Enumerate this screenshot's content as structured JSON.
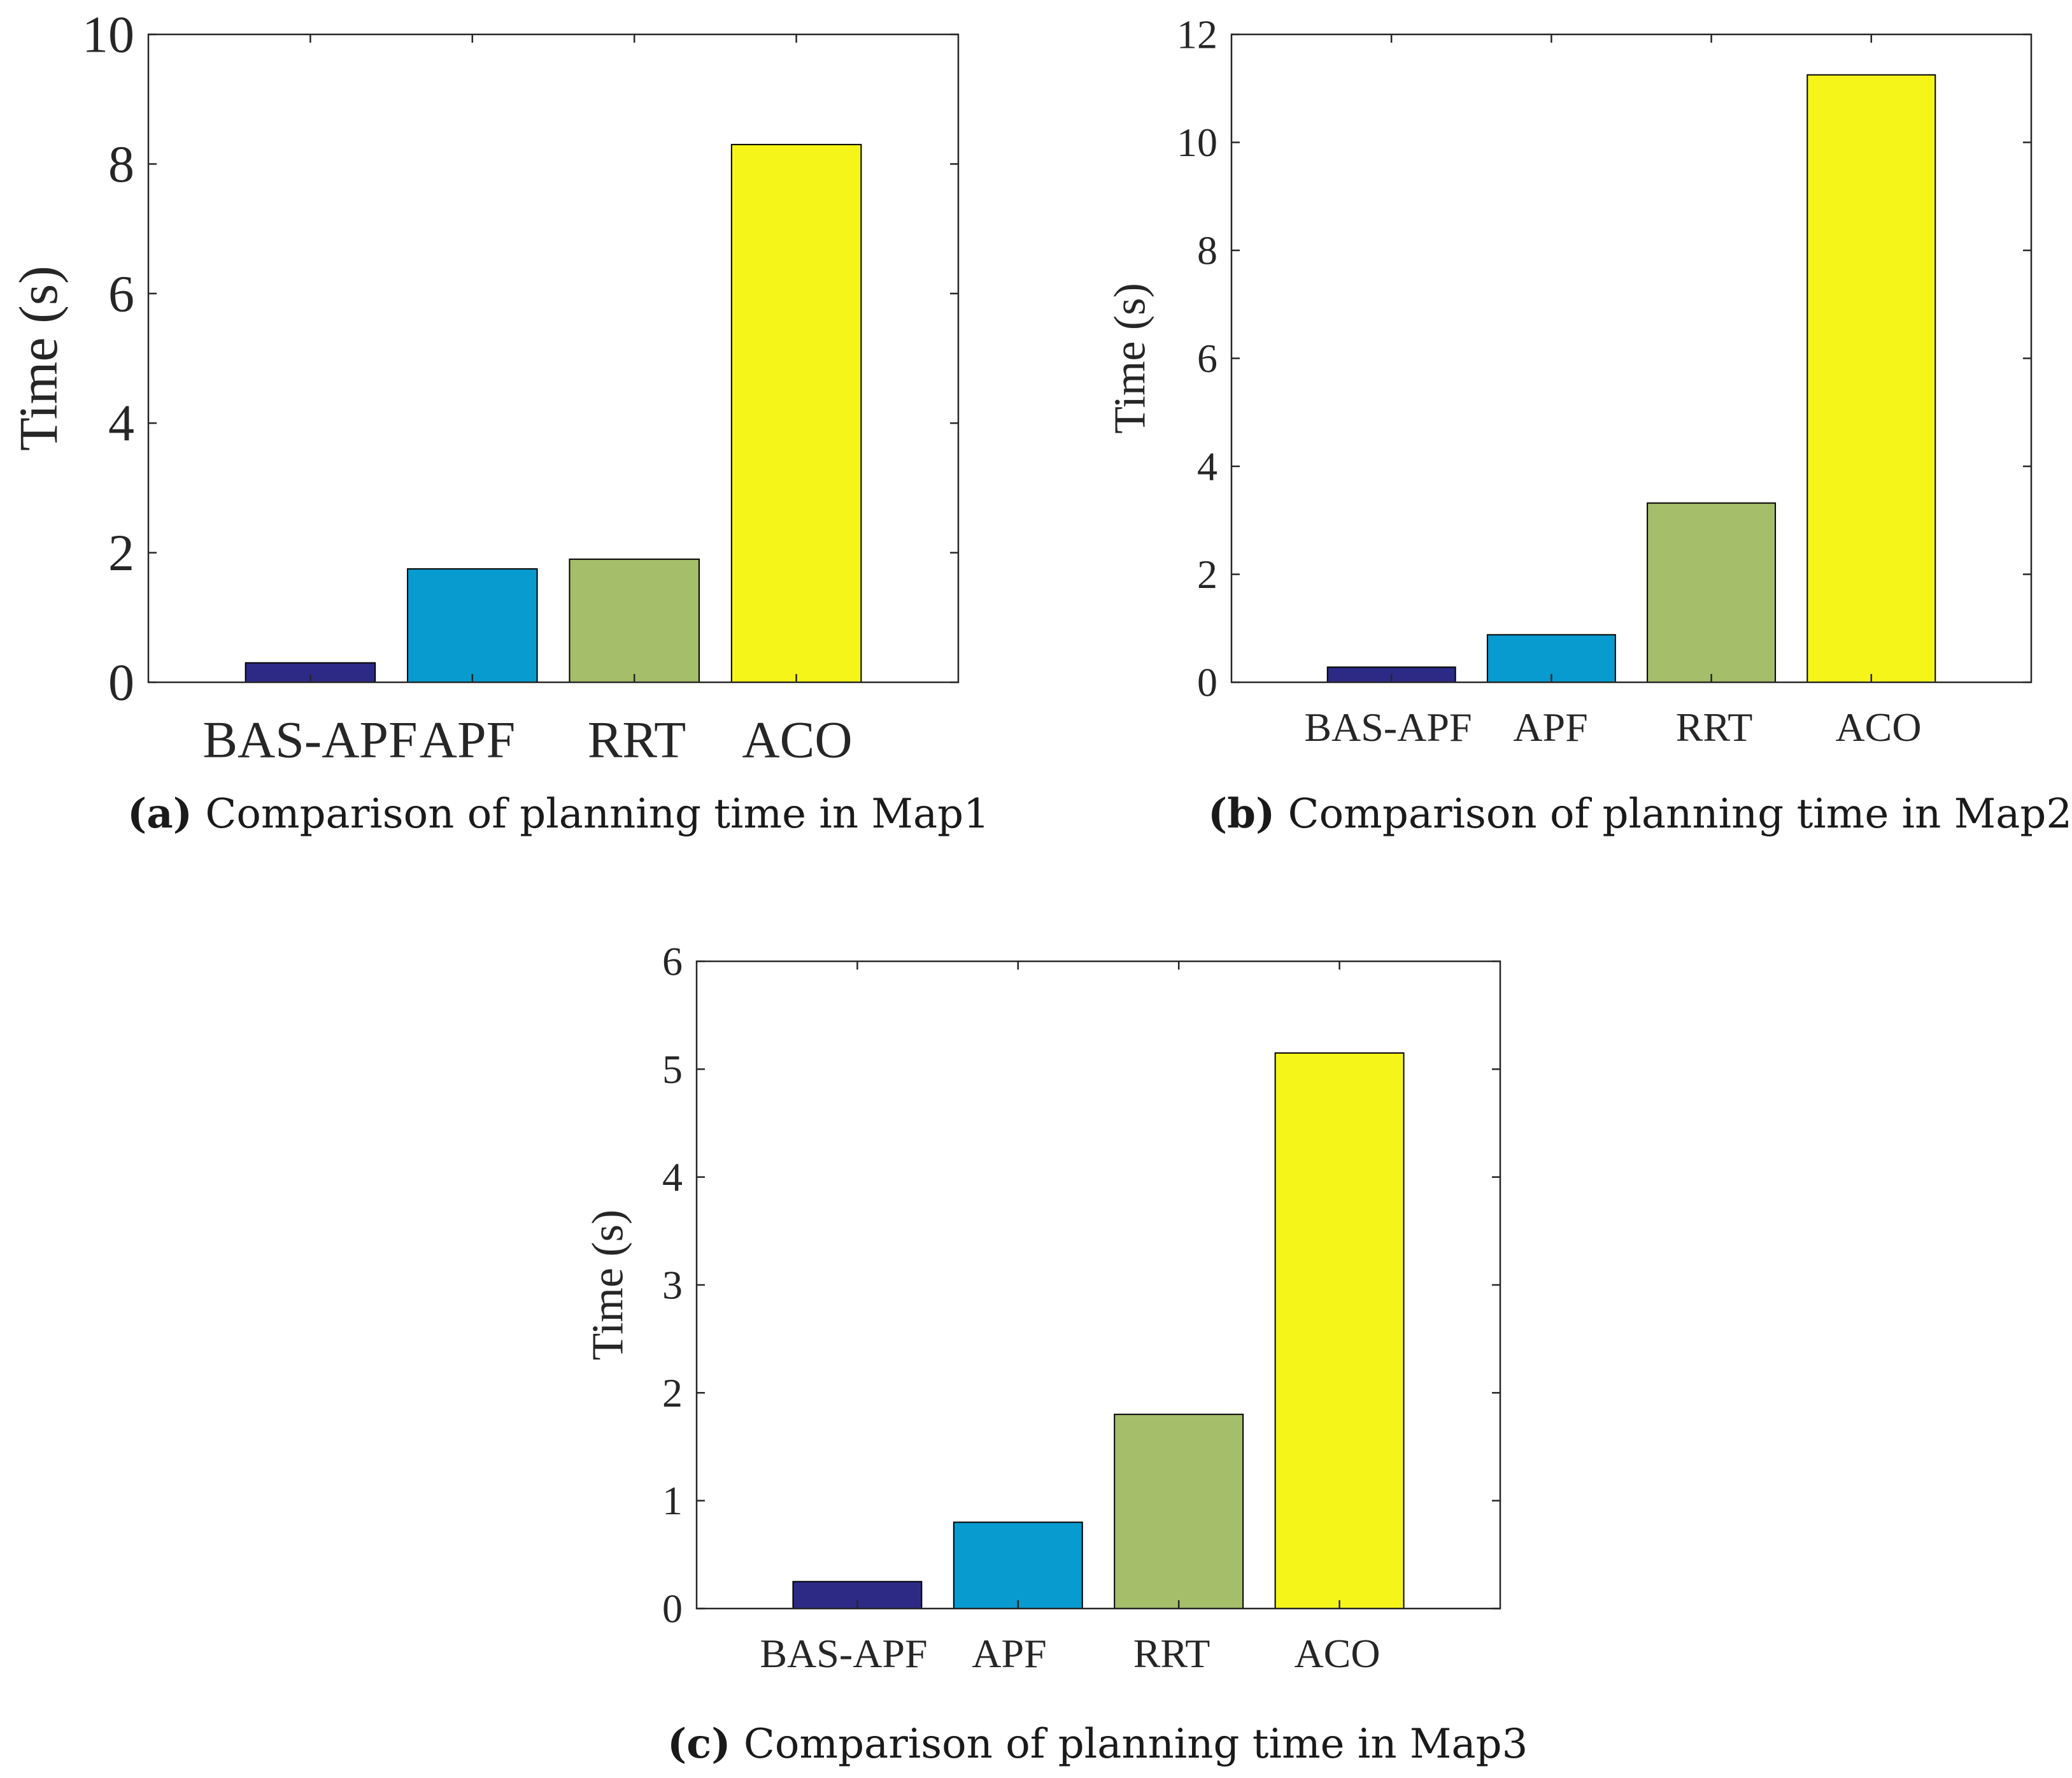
{
  "chart_data": [
    {
      "type": "bar",
      "panel": "a",
      "categories": [
        "BAS-APF",
        "APF",
        "RRT",
        "ACO"
      ],
      "tick_labels_text": [
        "BAS-APF",
        "APF",
        "RRT",
        "ACO"
      ],
      "values": [
        0.3,
        1.75,
        1.9,
        8.3
      ],
      "colors": [
        "#2d2a86",
        "#079bd0",
        "#a5be6a",
        "#f6f51a"
      ],
      "ylabel": "Time (s)",
      "xlabel": "",
      "ylim": [
        0,
        10
      ],
      "yticks": [
        0,
        2,
        4,
        6,
        8,
        10
      ],
      "ytick_labels": [
        "0",
        "2",
        "4",
        "6",
        "8",
        "10"
      ],
      "grid": false,
      "caption_label": "(a)",
      "caption_text": "Comparison of planning time in Map1"
    },
    {
      "type": "bar",
      "panel": "b",
      "categories": [
        "BAS-APF",
        "APF",
        "RRT",
        "ACO"
      ],
      "tick_labels_text": [
        "BAS-APF",
        "APF",
        "RRT",
        "ACO"
      ],
      "values": [
        0.28,
        0.88,
        3.32,
        11.25
      ],
      "colors": [
        "#2d2a86",
        "#079bd0",
        "#a5be6a",
        "#f6f51a"
      ],
      "ylabel": "Time (s)",
      "xlabel": "",
      "ylim": [
        0,
        12
      ],
      "yticks": [
        0,
        2,
        4,
        6,
        8,
        10,
        12
      ],
      "ytick_labels": [
        "0",
        "2",
        "4",
        "6",
        "8",
        "10",
        "12"
      ],
      "grid": false,
      "caption_label": "(b)",
      "caption_text": "Comparison of planning time in Map2"
    },
    {
      "type": "bar",
      "panel": "c",
      "categories": [
        "BAS-APF",
        "APF",
        "RRT",
        "ACO"
      ],
      "tick_labels_text": [
        "BAS-APF",
        "APF",
        "RRT",
        "ACO"
      ],
      "values": [
        0.25,
        0.8,
        1.8,
        5.15
      ],
      "colors": [
        "#2d2a86",
        "#079bd0",
        "#a5be6a",
        "#f6f51a"
      ],
      "ylabel": "Time (s)",
      "xlabel": "",
      "ylim": [
        0,
        6
      ],
      "yticks": [
        0,
        1,
        2,
        3,
        4,
        5,
        6
      ],
      "ytick_labels": [
        "0",
        "1",
        "2",
        "3",
        "4",
        "5",
        "6"
      ],
      "grid": false,
      "caption_label": "(c)",
      "caption_text": "Comparison of planning time in Map3"
    }
  ]
}
